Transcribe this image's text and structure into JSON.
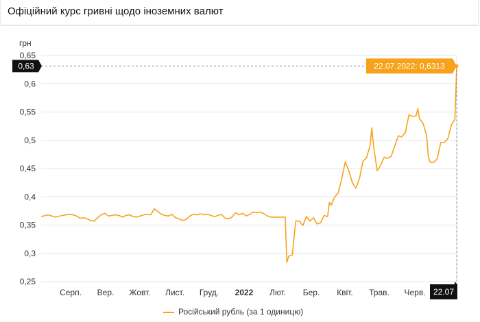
{
  "title": "Офіційний курс гривні щодо іноземних валют",
  "chart_data": {
    "type": "line",
    "ylabel": "грн",
    "ylim": [
      0.25,
      0.65
    ],
    "yticks": [
      0.25,
      0.3,
      0.35,
      0.4,
      0.45,
      0.5,
      0.55,
      0.6,
      0.65
    ],
    "ytick_labels": [
      "0,25",
      "0,3",
      "0,35",
      "0,4",
      "0,45",
      "0,5",
      "0,55",
      "0,6",
      "0,65"
    ],
    "x_labels": [
      "Серп.",
      "Вер.",
      "Жовт.",
      "Лист.",
      "Груд.",
      "2022",
      "Лют.",
      "Бер.",
      "Квіт.",
      "Трав.",
      "Черв."
    ],
    "x_end_label": "22.07",
    "y_current_label": "0,63",
    "tooltip": "22.07.2022: 0,6313",
    "grid": "horizontal",
    "legend_position": "bottom",
    "series": [
      {
        "name": "Російський рубль (за 1 одиницю)",
        "color": "#f7a21b",
        "points": [
          [
            0,
            0.365
          ],
          [
            2,
            0.368
          ],
          [
            4,
            0.364
          ],
          [
            6,
            0.367
          ],
          [
            8,
            0.369
          ],
          [
            9,
            0.368
          ],
          [
            10,
            0.366
          ],
          [
            11,
            0.362
          ],
          [
            12,
            0.363
          ],
          [
            13,
            0.361
          ],
          [
            14,
            0.358
          ],
          [
            15,
            0.357
          ],
          [
            16,
            0.363
          ],
          [
            17,
            0.368
          ],
          [
            18,
            0.371
          ],
          [
            19,
            0.366
          ],
          [
            20,
            0.367
          ],
          [
            21,
            0.368
          ],
          [
            22,
            0.367
          ],
          [
            23,
            0.364
          ],
          [
            24,
            0.367
          ],
          [
            25,
            0.368
          ],
          [
            26,
            0.365
          ],
          [
            27,
            0.364
          ],
          [
            28,
            0.366
          ],
          [
            29,
            0.368
          ],
          [
            30,
            0.369
          ],
          [
            31,
            0.368
          ],
          [
            32,
            0.379
          ],
          [
            33,
            0.374
          ],
          [
            34,
            0.369
          ],
          [
            35,
            0.367
          ],
          [
            36,
            0.366
          ],
          [
            37,
            0.369
          ],
          [
            38,
            0.363
          ],
          [
            39,
            0.361
          ],
          [
            40,
            0.358
          ],
          [
            41,
            0.36
          ],
          [
            42,
            0.366
          ],
          [
            43,
            0.369
          ],
          [
            44,
            0.368
          ],
          [
            45,
            0.37
          ],
          [
            46,
            0.368
          ],
          [
            47,
            0.369
          ],
          [
            48,
            0.367
          ],
          [
            49,
            0.365
          ],
          [
            50,
            0.367
          ],
          [
            51,
            0.369
          ],
          [
            52,
            0.362
          ],
          [
            53,
            0.361
          ],
          [
            54,
            0.364
          ],
          [
            55,
            0.372
          ],
          [
            56,
            0.368
          ],
          [
            57,
            0.371
          ],
          [
            58,
            0.366
          ],
          [
            59,
            0.369
          ],
          [
            60,
            0.373
          ],
          [
            61,
            0.372
          ],
          [
            62,
            0.373
          ],
          [
            63,
            0.37
          ],
          [
            64,
            0.366
          ],
          [
            65,
            0.364
          ],
          [
            66,
            0.364
          ],
          [
            67,
            0.364
          ],
          [
            68,
            0.364
          ],
          [
            69,
            0.364
          ],
          [
            69.5,
            0.284
          ],
          [
            70,
            0.295
          ],
          [
            71,
            0.297
          ],
          [
            72,
            0.357
          ],
          [
            73,
            0.357
          ],
          [
            74,
            0.349
          ],
          [
            75,
            0.365
          ],
          [
            76,
            0.357
          ],
          [
            77,
            0.363
          ],
          [
            78,
            0.352
          ],
          [
            79,
            0.354
          ],
          [
            80,
            0.367
          ],
          [
            81,
            0.365
          ],
          [
            81.5,
            0.39
          ],
          [
            82,
            0.385
          ],
          [
            83,
            0.4
          ],
          [
            84,
            0.407
          ],
          [
            85,
            0.432
          ],
          [
            86,
            0.462
          ],
          [
            87,
            0.446
          ],
          [
            88,
            0.425
          ],
          [
            89,
            0.415
          ],
          [
            90,
            0.432
          ],
          [
            91,
            0.463
          ],
          [
            92,
            0.469
          ],
          [
            93,
            0.49
          ],
          [
            93.5,
            0.522
          ],
          [
            94,
            0.49
          ],
          [
            95,
            0.446
          ],
          [
            96,
            0.456
          ],
          [
            97,
            0.47
          ],
          [
            98,
            0.468
          ],
          [
            99,
            0.472
          ],
          [
            100,
            0.49
          ],
          [
            101,
            0.508
          ],
          [
            102,
            0.506
          ],
          [
            103,
            0.514
          ],
          [
            104,
            0.545
          ],
          [
            105,
            0.542
          ],
          [
            106,
            0.543
          ],
          [
            106.5,
            0.556
          ],
          [
            107,
            0.538
          ],
          [
            108,
            0.53
          ],
          [
            109,
            0.508
          ],
          [
            109.5,
            0.47
          ],
          [
            110,
            0.461
          ],
          [
            111,
            0.461
          ],
          [
            112,
            0.467
          ],
          [
            113,
            0.496
          ],
          [
            114,
            0.496
          ],
          [
            115,
            0.503
          ],
          [
            116,
            0.527
          ],
          [
            117,
            0.537
          ],
          [
            117.5,
            0.6313
          ]
        ]
      }
    ]
  }
}
